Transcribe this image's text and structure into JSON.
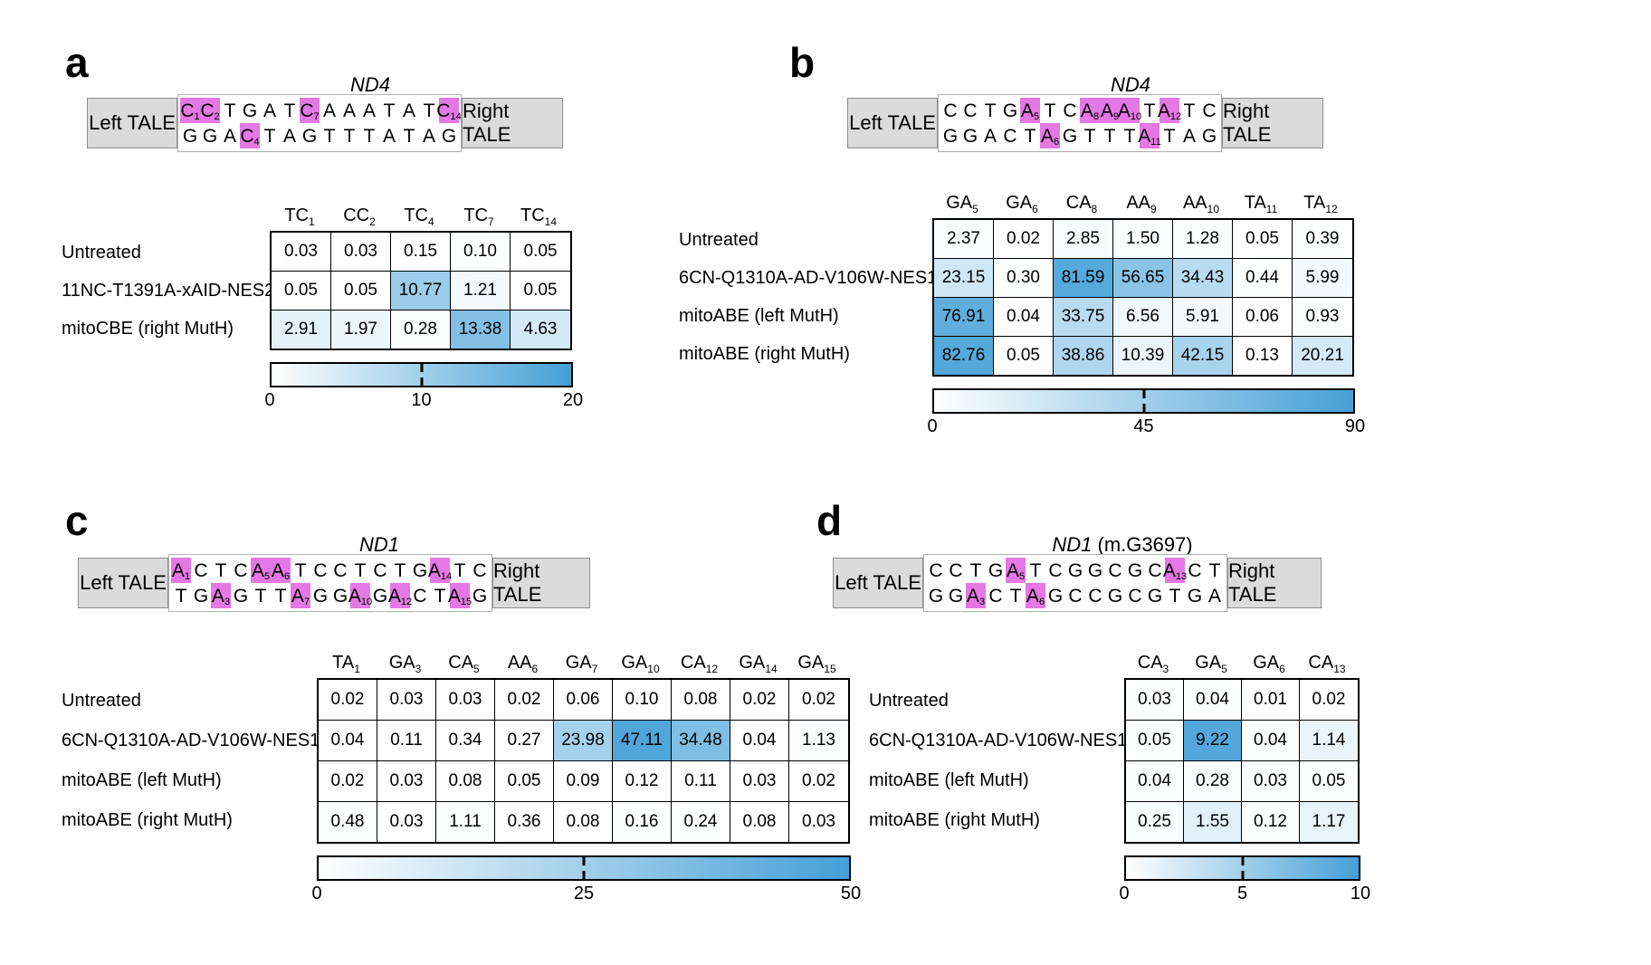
{
  "colors": {
    "heat_max": "#45a0d7",
    "highlight": "#e478e4",
    "tale_fill": "#dbdbdb",
    "tale_border": "#8c8c8c"
  },
  "chart_data": [
    {
      "panel_letter": "a",
      "type": "heatmap",
      "gene_title": {
        "italic": "ND4",
        "rest": ""
      },
      "left_tale_label": "Left TALE",
      "right_tale_label": "Right TALE",
      "top_strand": [
        [
          "C",
          "1",
          1
        ],
        [
          "C",
          "2",
          1
        ],
        [
          "T"
        ],
        [
          "G"
        ],
        [
          "A"
        ],
        [
          "T"
        ],
        [
          "C",
          "7",
          1
        ],
        [
          "A"
        ],
        [
          "A"
        ],
        [
          "A"
        ],
        [
          "T"
        ],
        [
          "A"
        ],
        [
          "T"
        ],
        [
          "C",
          "14",
          1
        ]
      ],
      "bottom_strand": [
        [
          "G"
        ],
        [
          "G"
        ],
        [
          "A"
        ],
        [
          "C",
          "4",
          1
        ],
        [
          "T"
        ],
        [
          "A"
        ],
        [
          "G"
        ],
        [
          "T"
        ],
        [
          "T"
        ],
        [
          "T"
        ],
        [
          "A"
        ],
        [
          "T"
        ],
        [
          "A"
        ],
        [
          "G"
        ]
      ],
      "columns": [
        [
          "TC",
          "1"
        ],
        [
          "CC",
          "2"
        ],
        [
          "TC",
          "4"
        ],
        [
          "TC",
          "7"
        ],
        [
          "TC",
          "14"
        ]
      ],
      "rows": [
        "Untreated",
        "11NC-T1391A-xAID-NES2",
        "mitoCBE (right MutH)"
      ],
      "values": [
        [
          0.03,
          0.03,
          0.15,
          0.1,
          0.05
        ],
        [
          0.05,
          0.05,
          10.77,
          1.21,
          0.05
        ],
        [
          2.91,
          1.97,
          0.28,
          13.38,
          4.63
        ]
      ],
      "scale": {
        "min": 0,
        "mid": 10,
        "max": 20
      },
      "scale_labels": [
        "0",
        "10",
        "20"
      ]
    },
    {
      "panel_letter": "b",
      "type": "heatmap",
      "gene_title": {
        "italic": "ND4",
        "rest": ""
      },
      "left_tale_label": "Left TALE",
      "right_tale_label": "Right TALE",
      "top_strand": [
        [
          "C"
        ],
        [
          "C"
        ],
        [
          "T"
        ],
        [
          "G"
        ],
        [
          "A",
          "5",
          1
        ],
        [
          "T"
        ],
        [
          "C"
        ],
        [
          "A",
          "8",
          1
        ],
        [
          "A",
          "9",
          1
        ],
        [
          "A",
          "10",
          1
        ],
        [
          "T"
        ],
        [
          "A",
          "12",
          1
        ],
        [
          "T"
        ],
        [
          "C"
        ]
      ],
      "bottom_strand": [
        [
          "G"
        ],
        [
          "G"
        ],
        [
          "A"
        ],
        [
          "C"
        ],
        [
          "T"
        ],
        [
          "A",
          "6",
          1
        ],
        [
          "G"
        ],
        [
          "T"
        ],
        [
          "T"
        ],
        [
          "T"
        ],
        [
          "A",
          "11",
          1
        ],
        [
          "T"
        ],
        [
          "A"
        ],
        [
          "G"
        ]
      ],
      "columns": [
        [
          "GA",
          "5"
        ],
        [
          "GA",
          "6"
        ],
        [
          "CA",
          "8"
        ],
        [
          "AA",
          "9"
        ],
        [
          "AA",
          "10"
        ],
        [
          "TA",
          "11"
        ],
        [
          "TA",
          "12"
        ]
      ],
      "rows": [
        "Untreated",
        "6CN-Q1310A-AD-V106W-NES1",
        "mitoABE (left MutH)",
        "mitoABE (right MutH)"
      ],
      "values": [
        [
          2.37,
          0.02,
          2.85,
          1.5,
          1.28,
          0.05,
          0.39
        ],
        [
          23.15,
          0.3,
          81.59,
          56.65,
          34.43,
          0.44,
          5.99
        ],
        [
          76.91,
          0.04,
          33.75,
          6.56,
          5.91,
          0.06,
          0.93
        ],
        [
          82.76,
          0.05,
          38.86,
          10.39,
          42.15,
          0.13,
          20.21
        ]
      ],
      "scale": {
        "min": 0,
        "mid": 45,
        "max": 90
      },
      "scale_labels": [
        "0",
        "45",
        "90"
      ]
    },
    {
      "panel_letter": "c",
      "type": "heatmap",
      "gene_title": {
        "italic": "ND1",
        "rest": ""
      },
      "left_tale_label": "Left TALE",
      "right_tale_label": "Right TALE",
      "top_strand": [
        [
          "A",
          "1",
          1
        ],
        [
          "C"
        ],
        [
          "T"
        ],
        [
          "C"
        ],
        [
          "A",
          "5",
          1
        ],
        [
          "A",
          "6",
          1
        ],
        [
          "T"
        ],
        [
          "C"
        ],
        [
          "C"
        ],
        [
          "T"
        ],
        [
          "C"
        ],
        [
          "T"
        ],
        [
          "G"
        ],
        [
          "A",
          "14",
          1
        ],
        [
          "T"
        ],
        [
          "C"
        ]
      ],
      "bottom_strand": [
        [
          "T"
        ],
        [
          "G"
        ],
        [
          "A",
          "3",
          1
        ],
        [
          "G"
        ],
        [
          "T"
        ],
        [
          "T"
        ],
        [
          "A",
          "7",
          1
        ],
        [
          "G"
        ],
        [
          "G"
        ],
        [
          "A",
          "10",
          1
        ],
        [
          "G"
        ],
        [
          "A",
          "12",
          1
        ],
        [
          "C"
        ],
        [
          "T"
        ],
        [
          "A",
          "15",
          1
        ],
        [
          "G"
        ]
      ],
      "columns": [
        [
          "TA",
          "1"
        ],
        [
          "GA",
          "3"
        ],
        [
          "CA",
          "5"
        ],
        [
          "AA",
          "6"
        ],
        [
          "GA",
          "7"
        ],
        [
          "GA",
          "10"
        ],
        [
          "CA",
          "12"
        ],
        [
          "GA",
          "14"
        ],
        [
          "GA",
          "15"
        ]
      ],
      "rows": [
        "Untreated",
        "6CN-Q1310A-AD-V106W-NES1",
        "mitoABE (left MutH)",
        "mitoABE (right MutH)"
      ],
      "values": [
        [
          0.02,
          0.03,
          0.03,
          0.02,
          0.06,
          0.1,
          0.08,
          0.02,
          0.02
        ],
        [
          0.04,
          0.11,
          0.34,
          0.27,
          23.98,
          47.11,
          34.48,
          0.04,
          1.13
        ],
        [
          0.02,
          0.03,
          0.08,
          0.05,
          0.09,
          0.12,
          0.11,
          0.03,
          0.02
        ],
        [
          0.48,
          0.03,
          1.11,
          0.36,
          0.08,
          0.16,
          0.24,
          0.08,
          0.03
        ]
      ],
      "scale": {
        "min": 0,
        "mid": 25,
        "max": 50
      },
      "scale_labels": [
        "0",
        "25",
        "50"
      ]
    },
    {
      "panel_letter": "d",
      "type": "heatmap",
      "gene_title": {
        "italic": "ND1",
        "rest": " (m.G3697)"
      },
      "left_tale_label": "Left TALE",
      "right_tale_label": "Right TALE",
      "top_strand": [
        [
          "C"
        ],
        [
          "C"
        ],
        [
          "T"
        ],
        [
          "G"
        ],
        [
          "A",
          "5",
          1
        ],
        [
          "T"
        ],
        [
          "C"
        ],
        [
          "G"
        ],
        [
          "G"
        ],
        [
          "C"
        ],
        [
          "G"
        ],
        [
          "C"
        ],
        [
          "A",
          "13",
          1
        ],
        [
          "C"
        ],
        [
          "T"
        ]
      ],
      "bottom_strand": [
        [
          "G"
        ],
        [
          "G"
        ],
        [
          "A",
          "3",
          1
        ],
        [
          "C"
        ],
        [
          "T"
        ],
        [
          "A",
          "6",
          1
        ],
        [
          "G"
        ],
        [
          "C"
        ],
        [
          "C"
        ],
        [
          "G"
        ],
        [
          "C"
        ],
        [
          "G"
        ],
        [
          "T"
        ],
        [
          "G"
        ],
        [
          "A"
        ]
      ],
      "columns": [
        [
          "CA",
          "3"
        ],
        [
          "GA",
          "5"
        ],
        [
          "GA",
          "6"
        ],
        [
          "CA",
          "13"
        ]
      ],
      "rows": [
        "Untreated",
        "6CN-Q1310A-AD-V106W-NES1",
        "mitoABE (left MutH)",
        "mitoABE (right MutH)"
      ],
      "values": [
        [
          0.03,
          0.04,
          0.01,
          0.02
        ],
        [
          0.05,
          9.22,
          0.04,
          1.14
        ],
        [
          0.04,
          0.28,
          0.03,
          0.05
        ],
        [
          0.25,
          1.55,
          0.12,
          1.17
        ]
      ],
      "scale": {
        "min": 0,
        "mid": 5,
        "max": 10
      },
      "scale_labels": [
        "0",
        "5",
        "10"
      ]
    }
  ]
}
